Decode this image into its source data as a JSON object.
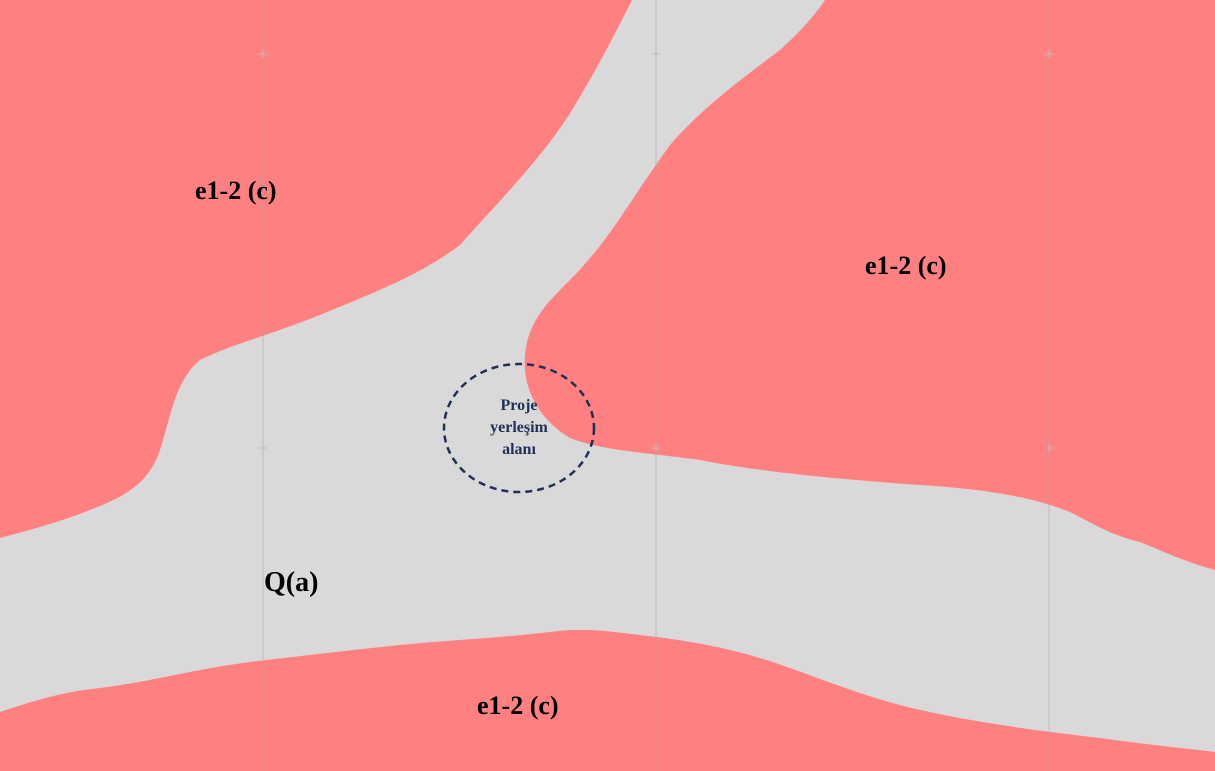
{
  "map": {
    "colors": {
      "rock_unit": "#ff8080",
      "alluvium": "#d9d9d9",
      "grid_line": "#a6a6a6",
      "site_marker": "#1f2f55"
    },
    "units": {
      "upper_left": "e1-2 (c)",
      "upper_right": "e1-2 (c)",
      "bottom": "e1-2 (c)",
      "valley": "Q(a)"
    },
    "project_site": {
      "line1": "Proje",
      "line2": "yerleşim",
      "line3": "alanı"
    }
  }
}
